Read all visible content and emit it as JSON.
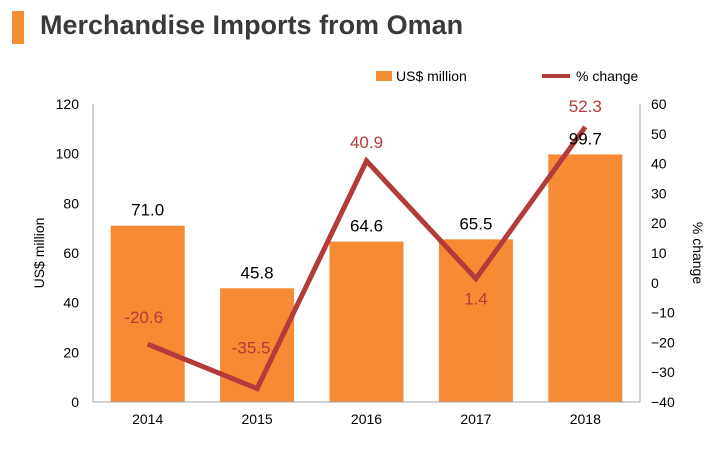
{
  "title": "Merchandise Imports from Oman",
  "colors": {
    "bar": "#f58b35",
    "line": "#b23b3b",
    "title_marker": "#f58b35",
    "title_text": "#3a3a3a",
    "axis": "#a6a6a6",
    "text": "#000000"
  },
  "chart_data": {
    "type": "bar+line",
    "title": "Merchandise Imports from Oman",
    "categories": [
      "2014",
      "2015",
      "2016",
      "2017",
      "2018"
    ],
    "series": [
      {
        "name": "US$ million",
        "type": "bar",
        "axis": "left",
        "values": [
          71.0,
          45.8,
          64.6,
          65.5,
          99.7
        ],
        "labels": [
          "71.0",
          "45.8",
          "64.6",
          "65.5",
          "99.7"
        ]
      },
      {
        "name": "% change",
        "type": "line",
        "axis": "right",
        "values": [
          -20.6,
          -35.5,
          40.9,
          1.4,
          52.3
        ],
        "labels": [
          "-20.6",
          "-35.5",
          "40.9",
          "1.4",
          "52.3"
        ]
      }
    ],
    "ylabel": "US$ million",
    "y2label": "% change",
    "ylim": [
      0,
      120
    ],
    "y2lim": [
      -40,
      60
    ],
    "yticks": [
      "0",
      "20",
      "40",
      "60",
      "80",
      "100",
      "120"
    ],
    "y2ticks": [
      "-40",
      "-30",
      "-20",
      "-10",
      "0",
      "10",
      "20",
      "30",
      "40",
      "50",
      "60"
    ],
    "legend_position": "top-right",
    "grid": false
  }
}
